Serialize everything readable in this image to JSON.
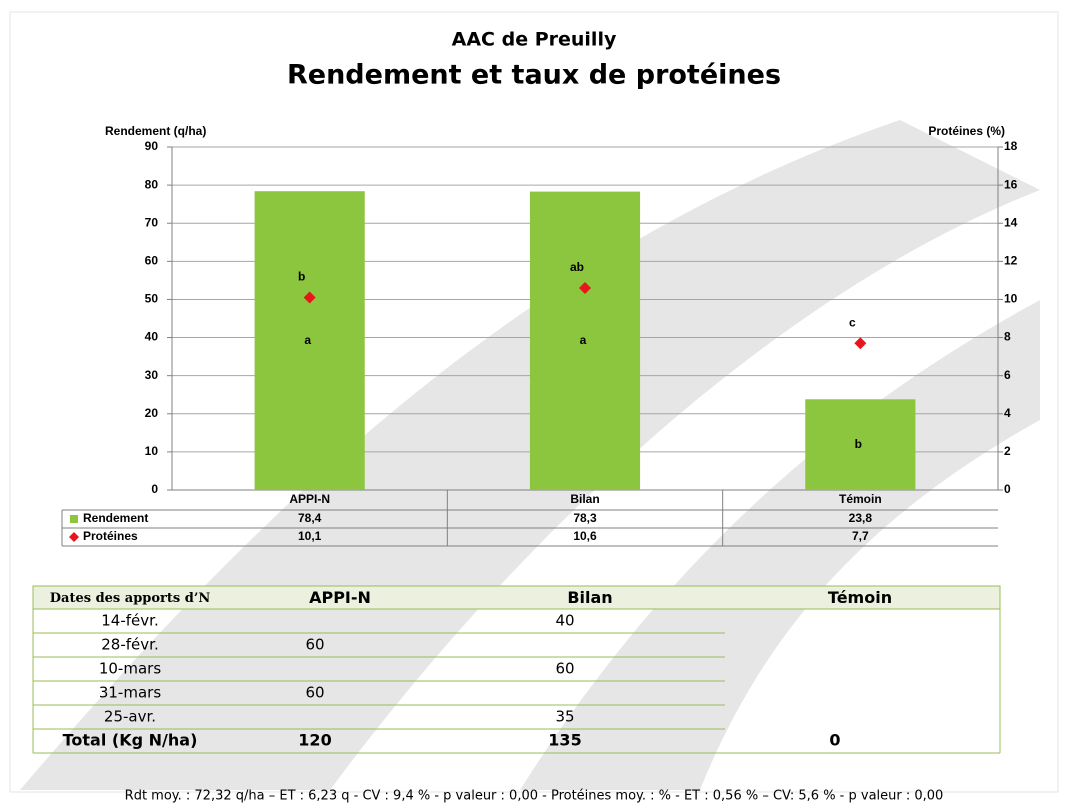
{
  "chart_data": {
    "type": "bar",
    "title": "AAC de Preuilly",
    "subtitle": "Rendement et taux de protéines",
    "ylabel": "Rendement (q/ha)",
    "y2label": "Protéines (%)",
    "categories": [
      "APPI-N",
      "Bilan",
      "Témoin"
    ],
    "series": [
      {
        "name": "Rendement",
        "color": "#8cc63f",
        "values": [
          78.4,
          78.3,
          23.8
        ],
        "value_labels": [
          "78,4",
          "78,3",
          "23,8"
        ],
        "letters": [
          "a",
          "a",
          "b"
        ]
      },
      {
        "name": "Protéines",
        "color": "#e8161b",
        "axis": "y2",
        "values": [
          10.1,
          10.6,
          7.7
        ],
        "value_labels": [
          "10,1",
          "10,6",
          "7,7"
        ],
        "letters": [
          "b",
          "ab",
          "c"
        ]
      }
    ],
    "ylim": [
      0,
      90
    ],
    "yticks": [
      0,
      10,
      20,
      30,
      40,
      50,
      60,
      70,
      80,
      90
    ],
    "y2lim": [
      0,
      18
    ],
    "y2ticks": [
      0,
      2,
      4,
      6,
      8,
      10,
      12,
      14,
      16,
      18
    ],
    "grid": true
  },
  "dates_table": {
    "header": [
      "Dates des apports d’N",
      "APPI-N",
      "Bilan",
      "Témoin"
    ],
    "rows": [
      [
        "14-févr.",
        null,
        40,
        null
      ],
      [
        "28-févr.",
        60,
        null,
        null
      ],
      [
        "10-mars",
        null,
        60,
        null
      ],
      [
        "31-mars",
        60,
        null,
        null
      ],
      [
        "25-avr.",
        null,
        35,
        null
      ]
    ],
    "total": [
      "Total (Kg N/ha)",
      120,
      135,
      0
    ]
  },
  "footer": "Rdt moy. :  72,32 q/ha – ET : 6,23 q - CV :  9,4 % - p valeur  : 0,00 - Protéines  moy. :  % - ET : 0,56 % – CV: 5,6 % - p valeur  : 0,00"
}
